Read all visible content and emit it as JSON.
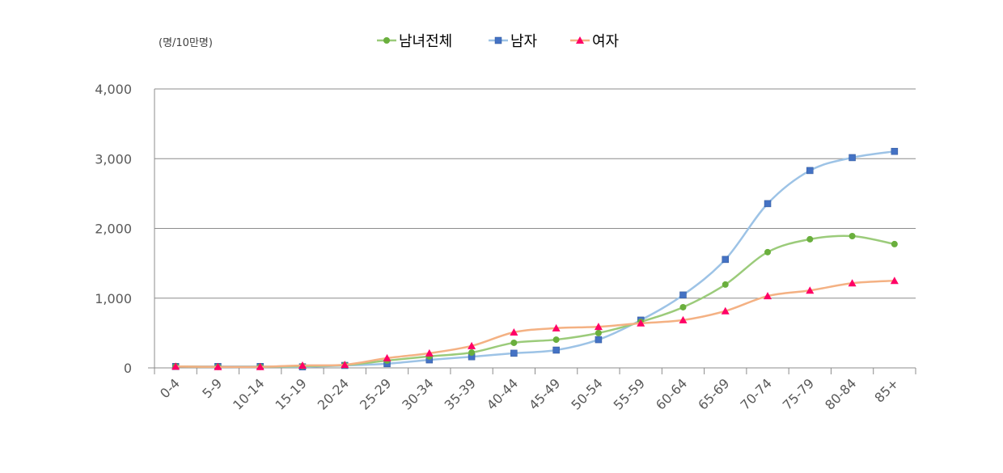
{
  "chart_data": {
    "type": "line",
    "unit_label": "(명/10만명)",
    "categories": [
      "0-4",
      "5-9",
      "10-14",
      "15-19",
      "20-24",
      "25-29",
      "30-34",
      "35-39",
      "40-44",
      "45-49",
      "50-54",
      "55-59",
      "60-64",
      "65-69",
      "70-74",
      "75-79",
      "80-84",
      "85+"
    ],
    "ylim": [
      0,
      4000
    ],
    "yticks": [
      0,
      1000,
      2000,
      3000,
      4000
    ],
    "ytick_labels": [
      "0",
      "1,000",
      "2,000",
      "3,000",
      "4,000"
    ],
    "grid": true,
    "legend_position": "top-center",
    "series": [
      {
        "name": "남녀전체",
        "color": "#9BCB7A",
        "marker_color": "#6AAF3D",
        "marker": "circle",
        "values": [
          20,
          15,
          15,
          25,
          40,
          105,
          165,
          220,
          360,
          405,
          500,
          660,
          870,
          1195,
          1660,
          1845,
          1890,
          1775
        ]
      },
      {
        "name": "남자",
        "color": "#9DC3E6",
        "marker_color": "#4472C4",
        "marker": "square",
        "values": [
          20,
          20,
          20,
          15,
          35,
          60,
          115,
          160,
          210,
          255,
          405,
          685,
          1045,
          1555,
          2355,
          2830,
          3015,
          3105
        ]
      },
      {
        "name": "여자",
        "color": "#F4B183",
        "marker_color": "#FF0066",
        "marker": "triangle",
        "values": [
          20,
          15,
          15,
          35,
          45,
          140,
          210,
          315,
          510,
          570,
          590,
          640,
          685,
          815,
          1030,
          1110,
          1215,
          1250
        ]
      }
    ]
  }
}
